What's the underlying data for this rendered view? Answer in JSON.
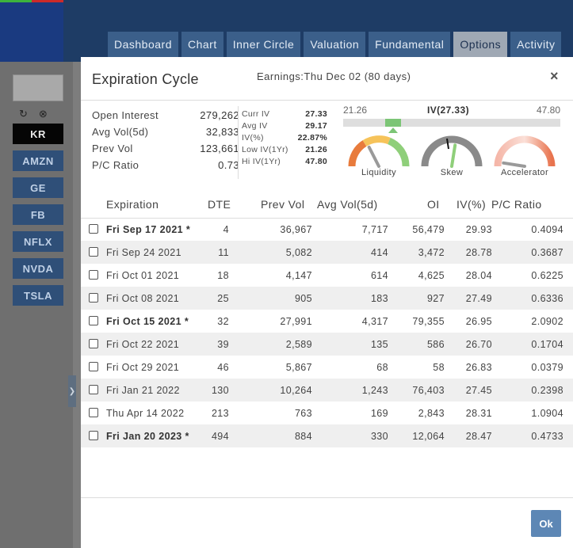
{
  "nav": {
    "tabs": [
      {
        "label": "Dashboard",
        "active": false
      },
      {
        "label": "Chart",
        "active": false
      },
      {
        "label": "Inner Circle",
        "active": false
      },
      {
        "label": "Valuation",
        "active": false
      },
      {
        "label": "Fundamental",
        "active": false
      },
      {
        "label": "Options",
        "active": true
      },
      {
        "label": "Activity",
        "active": false
      }
    ]
  },
  "sidebar": {
    "refresh_icon": "refresh-icon",
    "close_icon": "close-circle-icon",
    "tickers": [
      {
        "label": "KR",
        "active": true
      },
      {
        "label": "AMZN",
        "active": false
      },
      {
        "label": "GE",
        "active": false
      },
      {
        "label": "FB",
        "active": false
      },
      {
        "label": "NFLX",
        "active": false
      },
      {
        "label": "NVDA",
        "active": false
      },
      {
        "label": "TSLA",
        "active": false
      }
    ],
    "collapse_icon": "chevron-right-icon"
  },
  "modal": {
    "title": "Expiration Cycle",
    "earnings": "Earnings:Thu Dec 02 (80 days)",
    "close_label": "×",
    "ok_label": "Ok"
  },
  "stats": [
    {
      "label": "Open Interest",
      "value": "279,262"
    },
    {
      "label": "Avg Vol(5d)",
      "value": "32,833"
    },
    {
      "label": "Prev Vol",
      "value": "123,661"
    },
    {
      "label": "P/C Ratio",
      "value": "0.73"
    }
  ],
  "iv_stats": [
    {
      "label": "Curr IV",
      "value": "27.33"
    },
    {
      "label": "Avg IV",
      "value": "29.17"
    },
    {
      "label": "IV(%)",
      "value": "22.87%"
    },
    {
      "label": "Low IV(1Yr)",
      "value": "21.26"
    },
    {
      "label": "Hi IV(1Yr)",
      "value": "47.80"
    }
  ],
  "iv_range": {
    "low": "21.26",
    "current_label": "IV(27.33)",
    "high": "47.80",
    "low_value": 21.26,
    "current_value": 27.33,
    "high_value": 47.8
  },
  "gauges": [
    {
      "label": "Liquidity",
      "level": 0.35,
      "icon": "liquidity-gauge-icon"
    },
    {
      "label": "Skew",
      "level": 0.55,
      "icon": "skew-gauge-icon"
    },
    {
      "label": "Accelerator",
      "level": 0.05,
      "icon": "accelerator-gauge-icon"
    }
  ],
  "table": {
    "headers": {
      "expiration": "Expiration",
      "dte": "DTE",
      "prev_vol": "Prev Vol",
      "avg_vol": "Avg Vol(5d)",
      "oi": "OI",
      "iv": "IV(%)",
      "pc": "P/C Ratio"
    },
    "rows": [
      {
        "expiration": "Fri Sep 17 2021 *",
        "dte": "4",
        "prev_vol": "36,967",
        "avg_vol": "7,717",
        "oi": "56,479",
        "iv": "29.93",
        "pc": "0.4094",
        "bold": true
      },
      {
        "expiration": "Fri Sep 24 2021",
        "dte": "11",
        "prev_vol": "5,082",
        "avg_vol": "414",
        "oi": "3,472",
        "iv": "28.78",
        "pc": "0.3687",
        "bold": false
      },
      {
        "expiration": "Fri Oct 01 2021",
        "dte": "18",
        "prev_vol": "4,147",
        "avg_vol": "614",
        "oi": "4,625",
        "iv": "28.04",
        "pc": "0.6225",
        "bold": false
      },
      {
        "expiration": "Fri Oct 08 2021",
        "dte": "25",
        "prev_vol": "905",
        "avg_vol": "183",
        "oi": "927",
        "iv": "27.49",
        "pc": "0.6336",
        "bold": false
      },
      {
        "expiration": "Fri Oct 15 2021 *",
        "dte": "32",
        "prev_vol": "27,991",
        "avg_vol": "4,317",
        "oi": "79,355",
        "iv": "26.95",
        "pc": "2.0902",
        "bold": true
      },
      {
        "expiration": "Fri Oct 22 2021",
        "dte": "39",
        "prev_vol": "2,589",
        "avg_vol": "135",
        "oi": "586",
        "iv": "26.70",
        "pc": "0.1704",
        "bold": false
      },
      {
        "expiration": "Fri Oct 29 2021",
        "dte": "46",
        "prev_vol": "5,867",
        "avg_vol": "68",
        "oi": "58",
        "iv": "26.83",
        "pc": "0.0379",
        "bold": false
      },
      {
        "expiration": "Fri Jan 21 2022",
        "dte": "130",
        "prev_vol": "10,264",
        "avg_vol": "1,243",
        "oi": "76,403",
        "iv": "27.45",
        "pc": "0.2398",
        "bold": false
      },
      {
        "expiration": "Thu Apr 14 2022",
        "dte": "213",
        "prev_vol": "763",
        "avg_vol": "169",
        "oi": "2,843",
        "iv": "28.31",
        "pc": "1.0904",
        "bold": false
      },
      {
        "expiration": "Fri Jan 20 2023 *",
        "dte": "494",
        "prev_vol": "884",
        "avg_vol": "330",
        "oi": "12,064",
        "iv": "28.47",
        "pc": "0.4733",
        "bold": true
      }
    ]
  },
  "colors": {
    "topbar": "#1e3c65",
    "tab": "#3b5f8a",
    "tab_active": "#9fa8b4",
    "ok_button": "#5d87b5",
    "iv_fill": "#7cc576"
  }
}
